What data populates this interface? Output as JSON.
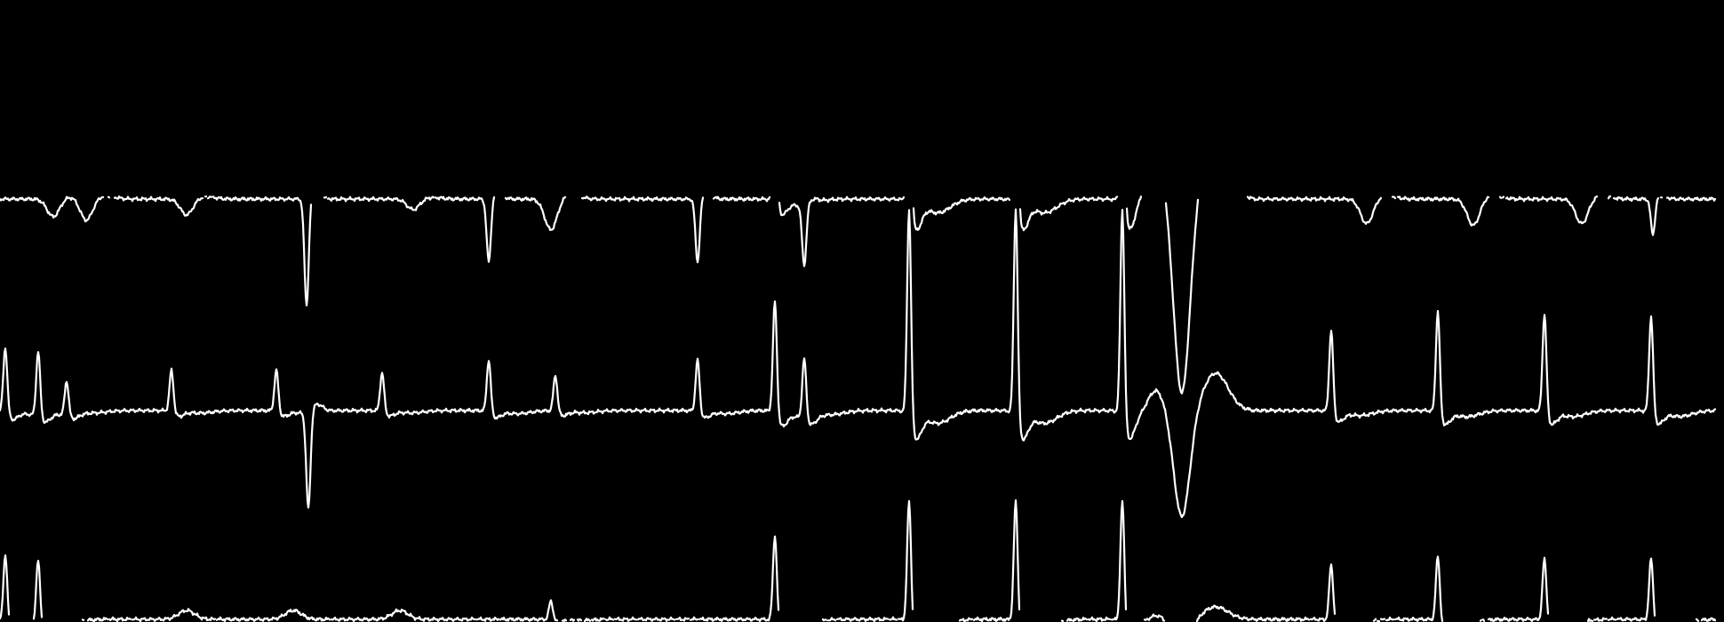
{
  "view": {
    "background_color": "#000000",
    "trace_color": "#ffffff"
  },
  "chart_data": {
    "type": "line",
    "title": "",
    "xlabel": "",
    "ylabel": "",
    "grid": false,
    "legend": "none",
    "xlim": [
      0,
      1940
    ],
    "series": [
      {
        "name": "",
        "clip_top": 221,
        "beats": [
          {
            "x": 60,
            "type": "inv_small",
            "amp": 20
          },
          {
            "x": 97,
            "type": "inv_small",
            "amp": 25
          },
          {
            "x": 210,
            "type": "inv_small",
            "amp": 18
          },
          {
            "x": 345,
            "type": "inv_spike",
            "amp": 122
          },
          {
            "x": 465,
            "type": "inv_small",
            "amp": 12
          },
          {
            "x": 550,
            "type": "inv_spike",
            "amp": 72
          },
          {
            "x": 620,
            "type": "inv_small",
            "amp": 35
          },
          {
            "x": 785,
            "type": "inv_spike",
            "amp": 72
          },
          {
            "x": 872,
            "type": "spike_up",
            "amp": 130
          },
          {
            "x": 905,
            "type": "inv_spike",
            "amp": 68
          },
          {
            "x": 1023,
            "type": "spike_up",
            "amp": 260
          },
          {
            "x": 1143,
            "type": "spike_up",
            "amp": 260
          },
          {
            "x": 1263,
            "type": "spike_up",
            "amp": 260
          },
          {
            "x": 1330,
            "type": "wide_inv",
            "amp": 220
          },
          {
            "x": 1538,
            "type": "inv_small",
            "amp": 28
          },
          {
            "x": 1658,
            "type": "inv_small",
            "amp": 30
          },
          {
            "x": 1780,
            "type": "inv_small",
            "amp": 28
          },
          {
            "x": 1860,
            "type": "inv_spike",
            "amp": 40
          }
        ]
      },
      {
        "name": "",
        "clip_top": 0,
        "beats": [
          {
            "x": 6,
            "type": "spike_up",
            "amp": 75
          },
          {
            "x": 43,
            "type": "spike_up",
            "amp": 75
          },
          {
            "x": 75,
            "type": "spike_up",
            "amp": 40
          },
          {
            "x": 193,
            "type": "spike_up",
            "amp": 48
          },
          {
            "x": 311,
            "type": "spike_up",
            "amp": 48
          },
          {
            "x": 347,
            "type": "inv_spike",
            "amp": 110
          },
          {
            "x": 430,
            "type": "spike_up",
            "amp": 45
          },
          {
            "x": 550,
            "type": "spike_up",
            "amp": 60
          },
          {
            "x": 625,
            "type": "spike_up",
            "amp": 42
          },
          {
            "x": 785,
            "type": "spike_up",
            "amp": 60
          },
          {
            "x": 872,
            "type": "spike_up",
            "amp": 130
          },
          {
            "x": 905,
            "type": "spike_up",
            "amp": 70
          },
          {
            "x": 1023,
            "type": "spike_up",
            "amp": 240
          },
          {
            "x": 1143,
            "type": "spike_up",
            "amp": 240
          },
          {
            "x": 1263,
            "type": "spike_up",
            "amp": 240
          },
          {
            "x": 1330,
            "type": "wide_inv",
            "amp": 120
          },
          {
            "x": 1498,
            "type": "spike_up",
            "amp": 95
          },
          {
            "x": 1618,
            "type": "spike_up",
            "amp": 118
          },
          {
            "x": 1738,
            "type": "spike_up",
            "amp": 115
          },
          {
            "x": 1858,
            "type": "spike_up",
            "amp": 112
          }
        ]
      },
      {
        "name": "",
        "clip_top": 0,
        "beats": [
          {
            "x": 6,
            "type": "spike_up",
            "amp": 75
          },
          {
            "x": 43,
            "type": "spike_up",
            "amp": 75
          },
          {
            "x": 210,
            "type": "bump",
            "amp": 10
          },
          {
            "x": 330,
            "type": "bump",
            "amp": 10
          },
          {
            "x": 450,
            "type": "bump",
            "amp": 10
          },
          {
            "x": 620,
            "type": "spike_up",
            "amp": 22
          },
          {
            "x": 872,
            "type": "spike_up",
            "amp": 100
          },
          {
            "x": 1023,
            "type": "spike_up",
            "amp": 140
          },
          {
            "x": 1143,
            "type": "spike_up",
            "amp": 140
          },
          {
            "x": 1263,
            "type": "spike_up",
            "amp": 140
          },
          {
            "x": 1330,
            "type": "wide_inv",
            "amp": 40
          },
          {
            "x": 1498,
            "type": "spike_up",
            "amp": 65
          },
          {
            "x": 1618,
            "type": "spike_up",
            "amp": 75
          },
          {
            "x": 1738,
            "type": "spike_up",
            "amp": 72
          },
          {
            "x": 1858,
            "type": "spike_up",
            "amp": 72
          }
        ]
      }
    ]
  }
}
